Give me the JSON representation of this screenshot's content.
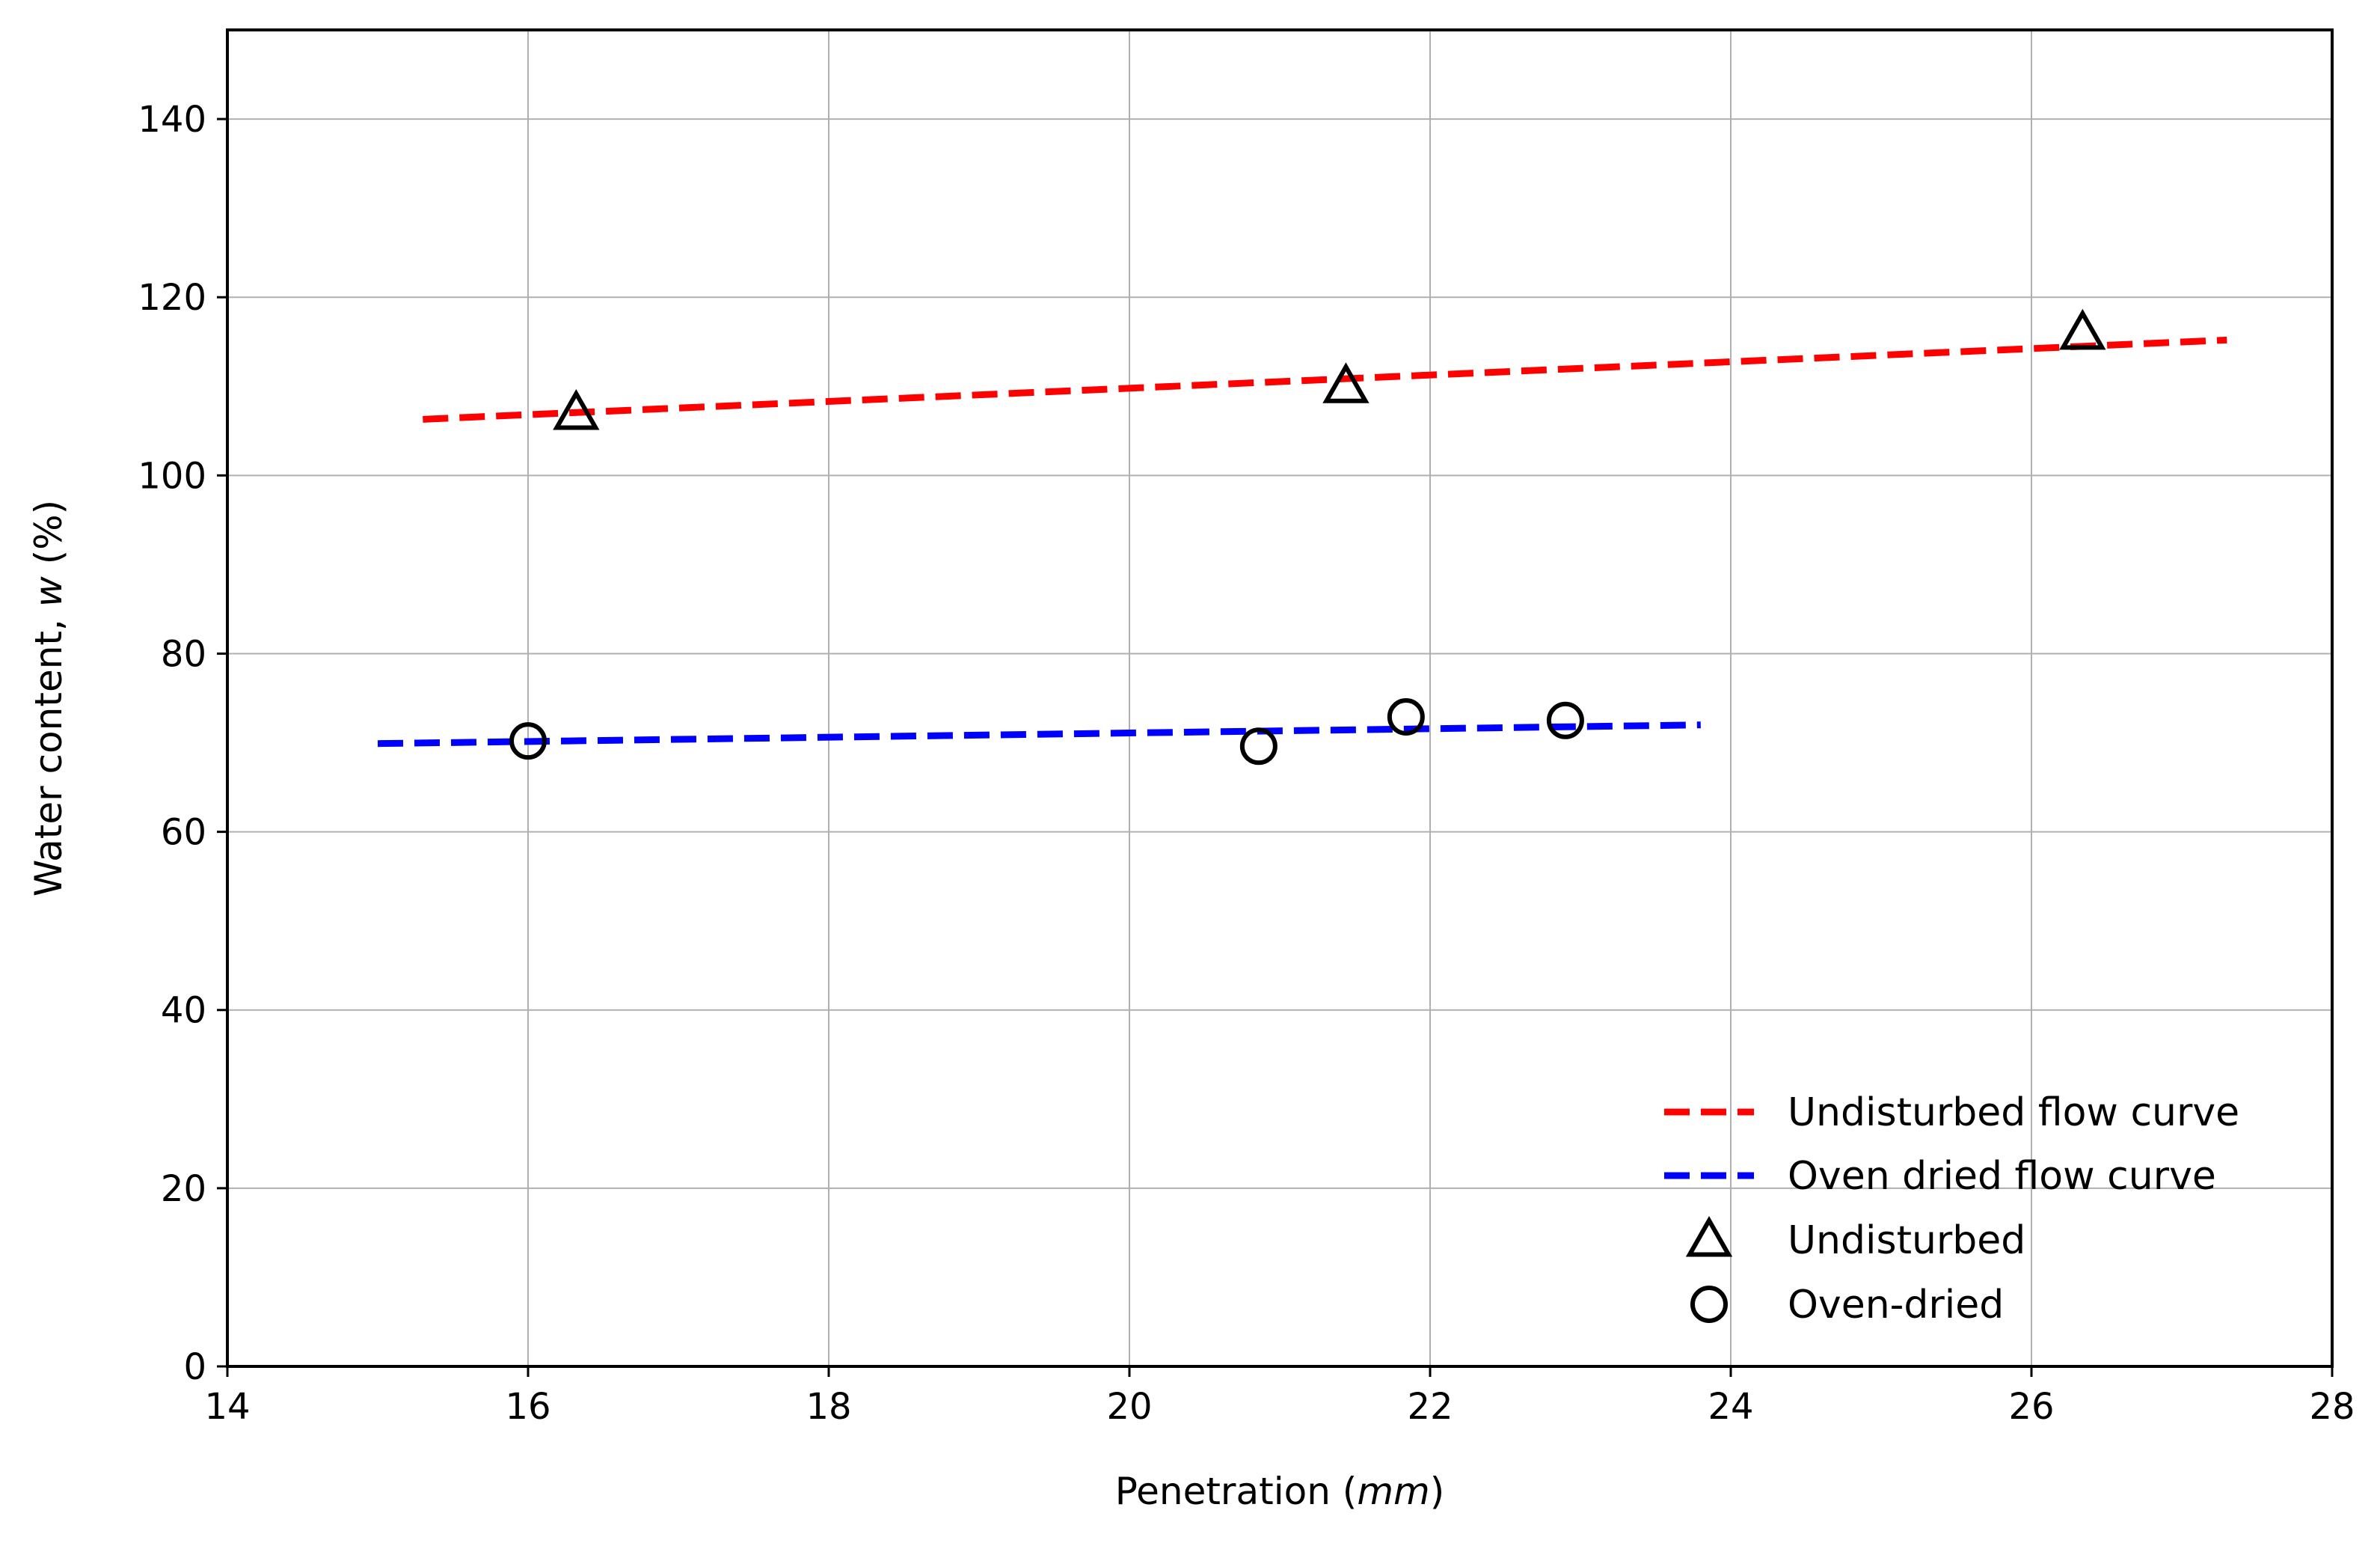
{
  "chart_data": {
    "type": "scatter",
    "xlabel": {
      "main": "Penetration (",
      "unit": "mm",
      "close": ")"
    },
    "ylabel": {
      "main": "Water content, ",
      "symbol": "w",
      "unit": " (%)"
    },
    "xlim": [
      14,
      28
    ],
    "ylim": [
      0,
      150
    ],
    "x_ticks": [
      14,
      16,
      18,
      20,
      22,
      24,
      26,
      28
    ],
    "y_ticks": [
      0,
      20,
      40,
      60,
      80,
      100,
      120,
      140
    ],
    "grid": true,
    "legend_position": "lower-right",
    "series": [
      {
        "name": "Undisturbed flow curve",
        "kind": "line",
        "style": "dashed",
        "color": "#ff0000",
        "x": [
          15.3,
          27.3
        ],
        "y": [
          106.3,
          115.2
        ]
      },
      {
        "name": "Oven dried flow curve",
        "kind": "line",
        "style": "dashed",
        "color": "#0000ff",
        "x": [
          15.0,
          23.8
        ],
        "y": [
          69.9,
          72.0
        ]
      },
      {
        "name": "Undisturbed",
        "kind": "scatter",
        "marker": "triangle",
        "color": "#000000",
        "x": [
          16.32,
          21.44,
          26.34
        ],
        "y": [
          107.0,
          110.0,
          116.0
        ]
      },
      {
        "name": "Oven-dried",
        "kind": "scatter",
        "marker": "circle",
        "color": "#000000",
        "x": [
          16.0,
          20.86,
          21.84,
          22.9
        ],
        "y": [
          70.2,
          69.6,
          72.9,
          72.5
        ]
      }
    ]
  }
}
